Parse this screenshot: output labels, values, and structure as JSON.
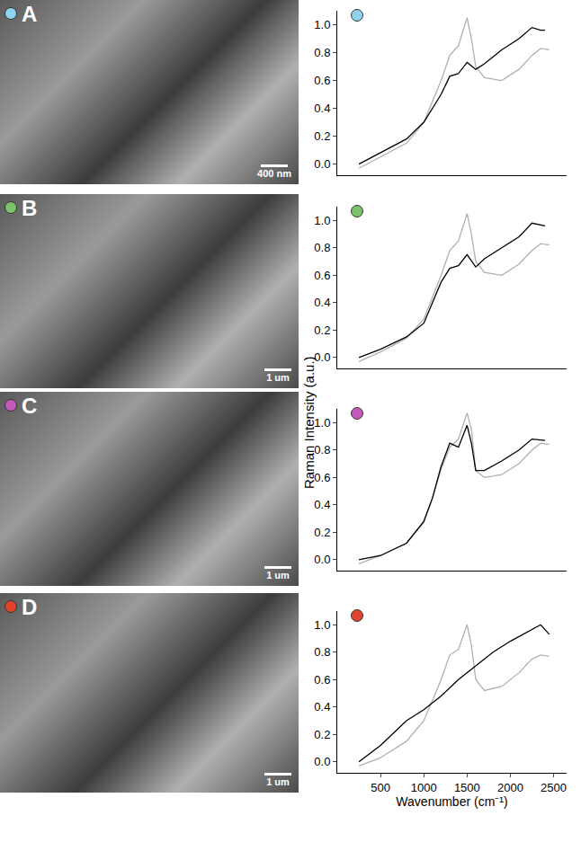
{
  "ylabel": "Raman Intensity (a.u.)",
  "images": [
    {
      "label": "A",
      "scale_bar": "400 nm",
      "color": "#8fd3ef"
    },
    {
      "label": "B",
      "scale_bar": "1 um",
      "color": "#7cc36a"
    },
    {
      "label": "C",
      "scale_bar": "1 um",
      "color": "#c45bbb"
    },
    {
      "label": "D",
      "scale_bar": "1 um",
      "color": "#e0452c"
    }
  ],
  "chart_data": [
    {
      "type": "line",
      "tick_labels": "y",
      "xlim": [
        0,
        2650
      ],
      "ylim": [
        -0.08,
        1.1
      ],
      "yticks": [
        {
          "value": 0,
          "label": "0.0"
        },
        {
          "value": 0.2,
          "label": "0.2"
        },
        {
          "value": 0.4,
          "label": "0.4"
        },
        {
          "value": 0.6,
          "label": "0.6"
        },
        {
          "value": 0.8,
          "label": "0.8"
        },
        {
          "value": 1,
          "label": "1.0"
        }
      ],
      "series": [
        {
          "color": "#b0b0b0",
          "x": [
            250,
            500,
            800,
            1000,
            1100,
            1200,
            1300,
            1400,
            1500,
            1550,
            1600,
            1700,
            1900,
            2100,
            2250,
            2350,
            2450
          ],
          "values": [
            -0.03,
            0.05,
            0.15,
            0.3,
            0.45,
            0.6,
            0.78,
            0.85,
            1.05,
            0.9,
            0.7,
            0.62,
            0.6,
            0.68,
            0.78,
            0.83,
            0.82
          ]
        },
        {
          "color": "#000000",
          "x": [
            250,
            500,
            800,
            1000,
            1200,
            1300,
            1400,
            1500,
            1600,
            1700,
            1900,
            2100,
            2250,
            2350,
            2400
          ],
          "values": [
            0,
            0.08,
            0.18,
            0.3,
            0.5,
            0.63,
            0.65,
            0.73,
            0.68,
            0.72,
            0.82,
            0.9,
            0.98,
            0.96,
            0.96
          ]
        }
      ]
    },
    {
      "type": "line",
      "tick_labels": "y",
      "xlim": [
        0,
        2650
      ],
      "ylim": [
        -0.08,
        1.1
      ],
      "yticks": [
        {
          "value": 0,
          "label": "0.0"
        },
        {
          "value": 0.2,
          "label": "0.2"
        },
        {
          "value": 0.4,
          "label": "0.4"
        },
        {
          "value": 0.6,
          "label": "0.6"
        },
        {
          "value": 0.8,
          "label": "0.8"
        },
        {
          "value": 1,
          "label": "1.0"
        }
      ],
      "series": [
        {
          "color": "#b0b0b0",
          "x": [
            250,
            500,
            800,
            1000,
            1100,
            1200,
            1300,
            1400,
            1500,
            1550,
            1600,
            1700,
            1900,
            2100,
            2250,
            2350,
            2450
          ],
          "values": [
            -0.03,
            0.04,
            0.14,
            0.28,
            0.44,
            0.6,
            0.78,
            0.85,
            1.05,
            0.9,
            0.7,
            0.62,
            0.6,
            0.68,
            0.78,
            0.83,
            0.82
          ]
        },
        {
          "color": "#000000",
          "x": [
            250,
            500,
            800,
            1000,
            1100,
            1200,
            1300,
            1400,
            1500,
            1600,
            1700,
            1900,
            2100,
            2250,
            2400
          ],
          "values": [
            0,
            0.06,
            0.15,
            0.25,
            0.4,
            0.55,
            0.65,
            0.67,
            0.75,
            0.66,
            0.72,
            0.8,
            0.88,
            0.98,
            0.96
          ]
        }
      ]
    },
    {
      "type": "line",
      "tick_labels": "y",
      "xlim": [
        0,
        2650
      ],
      "ylim": [
        -0.08,
        1.1
      ],
      "yticks": [
        {
          "value": 0,
          "label": "0.0"
        },
        {
          "value": 0.2,
          "label": "0.2"
        },
        {
          "value": 0.4,
          "label": "0.4"
        },
        {
          "value": 0.6,
          "label": "0.6"
        },
        {
          "value": 0.8,
          "label": "0.8"
        },
        {
          "value": 1,
          "label": "1.0"
        }
      ],
      "series": [
        {
          "color": "#b0b0b0",
          "x": [
            250,
            500,
            800,
            1000,
            1100,
            1200,
            1300,
            1400,
            1500,
            1550,
            1600,
            1700,
            1900,
            2100,
            2250,
            2350,
            2450
          ],
          "values": [
            -0.03,
            0.03,
            0.12,
            0.27,
            0.45,
            0.66,
            0.82,
            0.88,
            1.07,
            0.95,
            0.65,
            0.6,
            0.62,
            0.7,
            0.8,
            0.85,
            0.84
          ]
        },
        {
          "color": "#000000",
          "x": [
            250,
            500,
            800,
            1000,
            1100,
            1200,
            1300,
            1400,
            1500,
            1550,
            1600,
            1700,
            1900,
            2100,
            2250,
            2400
          ],
          "values": [
            0,
            0.03,
            0.12,
            0.28,
            0.45,
            0.68,
            0.85,
            0.82,
            0.98,
            0.85,
            0.65,
            0.65,
            0.72,
            0.8,
            0.88,
            0.87
          ]
        }
      ]
    },
    {
      "type": "line",
      "xlabel": "Wavenumber (cm⁻¹)",
      "xlim": [
        0,
        2650
      ],
      "ylim": [
        -0.08,
        1.1
      ],
      "xticks": [
        500,
        1000,
        1500,
        2000,
        2500
      ],
      "yticks": [
        {
          "value": 0,
          "label": "0.0"
        },
        {
          "value": 0.2,
          "label": "0.2"
        },
        {
          "value": 0.4,
          "label": "0.4"
        },
        {
          "value": 0.6,
          "label": "0.6"
        },
        {
          "value": 0.8,
          "label": "0.8"
        },
        {
          "value": 1,
          "label": "1.0"
        }
      ],
      "series": [
        {
          "color": "#b0b0b0",
          "x": [
            250,
            500,
            800,
            1000,
            1100,
            1200,
            1300,
            1400,
            1500,
            1550,
            1600,
            1700,
            1900,
            2100,
            2250,
            2350,
            2450
          ],
          "values": [
            -0.03,
            0.03,
            0.15,
            0.3,
            0.45,
            0.6,
            0.78,
            0.82,
            1.0,
            0.85,
            0.6,
            0.52,
            0.55,
            0.65,
            0.75,
            0.78,
            0.77
          ]
        },
        {
          "color": "#000000",
          "x": [
            250,
            500,
            800,
            1000,
            1200,
            1400,
            1600,
            1800,
            2000,
            2200,
            2350,
            2450
          ],
          "values": [
            0,
            0.12,
            0.3,
            0.38,
            0.48,
            0.6,
            0.7,
            0.8,
            0.88,
            0.95,
            1.0,
            0.93
          ]
        }
      ]
    }
  ]
}
